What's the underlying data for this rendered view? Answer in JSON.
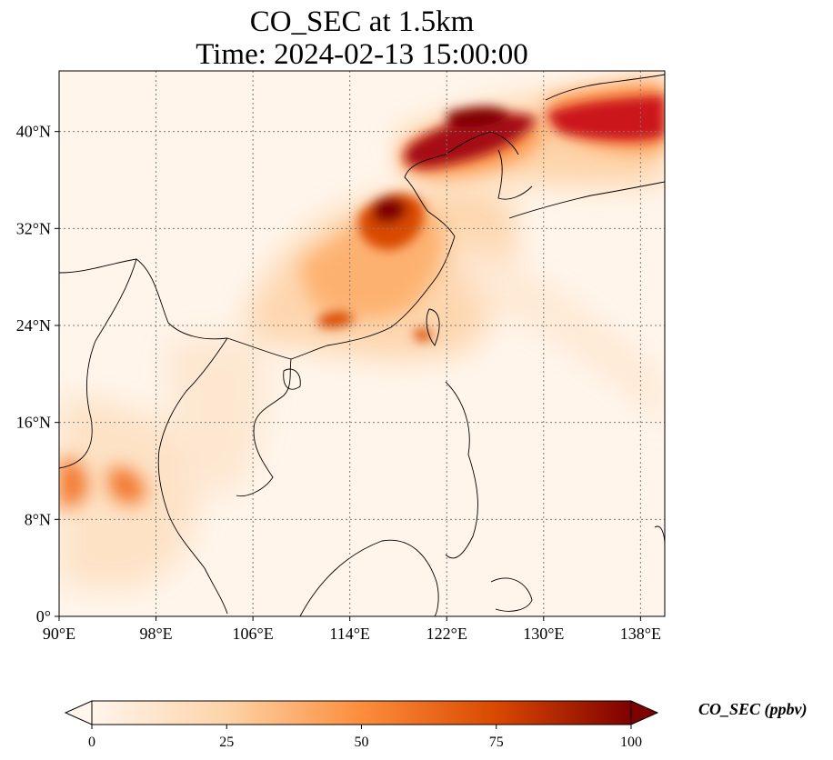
{
  "title_line1": "CO_SEC at 1.5km",
  "title_line2": "Time: 2024-02-13 15:00:00",
  "map": {
    "lon_range": [
      90,
      140
    ],
    "lat_range": [
      0,
      45
    ],
    "lon_ticks": [
      "90°E",
      "98°E",
      "106°E",
      "114°E",
      "122°E",
      "130°E",
      "138°E"
    ],
    "lat_ticks": [
      "0°",
      "8°N",
      "16°N",
      "24°N",
      "32°N",
      "40°N"
    ],
    "gridlines": "dotted",
    "colormap": [
      "#fff5eb",
      "#fdd3a8",
      "#fd8d3c",
      "#d94801",
      "#7f0000"
    ]
  },
  "colorbar": {
    "label": "CO_SEC (ppbv)",
    "ticks": [
      "0",
      "25",
      "50",
      "75",
      "100"
    ],
    "range": [
      0,
      100
    ],
    "extend": "both"
  }
}
